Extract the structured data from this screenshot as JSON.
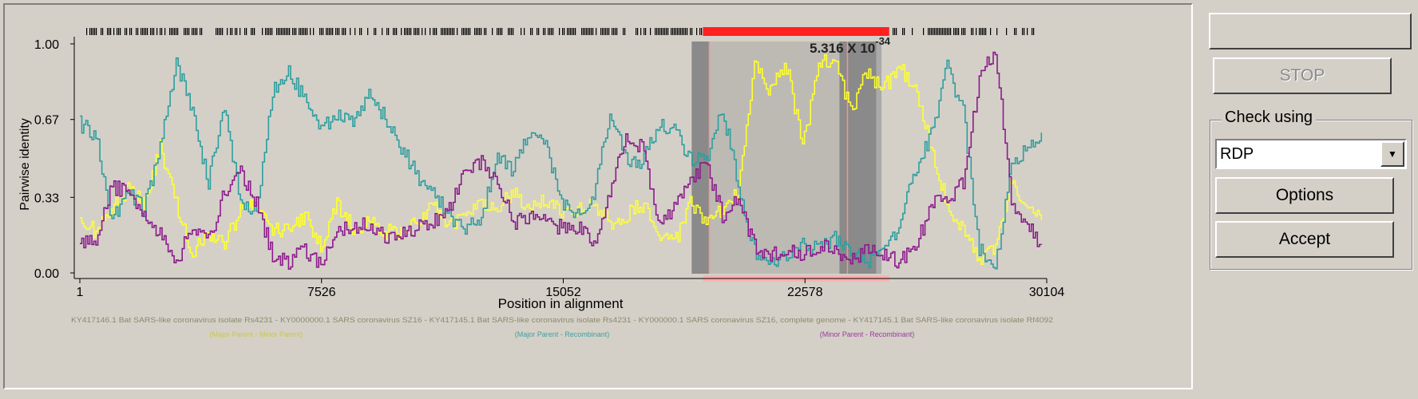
{
  "chart_data": {
    "type": "line",
    "title": "",
    "xlabel": "Position in alignment",
    "ylabel": "Pairwise identity",
    "xlim": [
      1,
      30104
    ],
    "ylim": [
      0.0,
      1.0
    ],
    "x_ticks": [
      "1",
      "7526",
      "15052",
      "22578",
      "30104"
    ],
    "y_ticks": [
      "1.00",
      "0.67",
      "0.33",
      "0.00"
    ],
    "pvalue_label": "5.316 X 10",
    "pvalue_exponent": "-34",
    "recombination_region": [
      20900,
      26400
    ],
    "x": [
      1,
      500,
      1000,
      1500,
      2000,
      2500,
      3000,
      3500,
      4000,
      4500,
      5000,
      5500,
      6000,
      6500,
      7000,
      7500,
      8000,
      8500,
      9000,
      9500,
      10000,
      10500,
      11000,
      11500,
      12000,
      12500,
      13000,
      13500,
      14000,
      14500,
      15000,
      15500,
      16000,
      16500,
      17000,
      17500,
      18000,
      18500,
      19000,
      19500,
      20000,
      20500,
      21000,
      21500,
      22000,
      22500,
      23000,
      23500,
      24000,
      24500,
      25000,
      25500,
      26000,
      26500,
      27000,
      27500,
      28000,
      28500,
      29000,
      29500,
      30000
    ],
    "series": [
      {
        "name": "",
        "color": "#ffff33",
        "values": [
          0.25,
          0.18,
          0.28,
          0.36,
          0.3,
          0.55,
          0.3,
          0.08,
          0.18,
          0.12,
          0.28,
          0.3,
          0.2,
          0.18,
          0.25,
          0.12,
          0.3,
          0.2,
          0.22,
          0.18,
          0.18,
          0.22,
          0.3,
          0.2,
          0.24,
          0.3,
          0.28,
          0.35,
          0.28,
          0.32,
          0.26,
          0.28,
          0.3,
          0.22,
          0.25,
          0.3,
          0.18,
          0.12,
          0.3,
          0.22,
          0.28,
          0.35,
          0.9,
          0.8,
          0.9,
          0.55,
          0.9,
          0.95,
          0.7,
          0.88,
          0.8,
          0.9,
          0.8,
          0.55,
          0.3,
          0.18,
          0.05,
          0.1,
          0.4,
          0.3,
          0.25
        ]
      },
      {
        "name": "",
        "color": "#2e9e9e",
        "values": [
          0.65,
          0.6,
          0.22,
          0.36,
          0.28,
          0.55,
          0.92,
          0.7,
          0.4,
          0.72,
          0.3,
          0.28,
          0.8,
          0.88,
          0.76,
          0.62,
          0.7,
          0.65,
          0.78,
          0.68,
          0.55,
          0.42,
          0.35,
          0.25,
          0.2,
          0.25,
          0.5,
          0.45,
          0.62,
          0.55,
          0.3,
          0.25,
          0.35,
          0.7,
          0.5,
          0.48,
          0.65,
          0.62,
          0.5,
          0.48,
          0.72,
          0.38,
          0.1,
          0.05,
          0.08,
          0.12,
          0.1,
          0.15,
          0.1,
          0.05,
          0.08,
          0.2,
          0.45,
          0.6,
          0.9,
          0.7,
          0.1,
          0.02,
          0.45,
          0.55,
          0.6
        ]
      },
      {
        "name": "",
        "color": "#8b1a8b",
        "values": [
          0.12,
          0.15,
          0.38,
          0.35,
          0.25,
          0.18,
          0.05,
          0.2,
          0.14,
          0.35,
          0.45,
          0.3,
          0.08,
          0.05,
          0.1,
          0.03,
          0.2,
          0.18,
          0.22,
          0.15,
          0.16,
          0.2,
          0.22,
          0.28,
          0.45,
          0.48,
          0.4,
          0.22,
          0.25,
          0.22,
          0.2,
          0.2,
          0.12,
          0.35,
          0.6,
          0.55,
          0.2,
          0.28,
          0.4,
          0.48,
          0.25,
          0.32,
          0.12,
          0.08,
          0.1,
          0.08,
          0.12,
          0.1,
          0.05,
          0.1,
          0.08,
          0.05,
          0.1,
          0.3,
          0.32,
          0.4,
          0.85,
          0.98,
          0.3,
          0.2,
          0.12
        ]
      }
    ]
  },
  "legend": {
    "line1": "KY417146.1 Bat SARS-like coronavirus isolate Rs4231 - KY0000000.1 SARS coronavirus SZ16 - KY417145.1 Bat SARS-like coronavirus isolate Rs4231 - KY000000.1 SARS coronavirus SZ16, complete genome - KY417145.1 Bat SARS-like coronavirus isolate Rf4092",
    "pair1_label": "(Major Parent - Minor Parent)",
    "pair2_label": "(Major Parent - Recombinant)",
    "pair3_label": "(Minor Parent - Recombinant)"
  },
  "buttons": {
    "top_label": "",
    "stop_label": "STOP",
    "options_label": "Options",
    "accept_label": "Accept"
  },
  "check_using": {
    "legend": "Check using",
    "selected": "RDP"
  },
  "colors": {
    "background": "#d4d0c8",
    "highlight_region": "#999999",
    "significance_bar": "#ff2020",
    "pink_band": "#ffb0b0"
  }
}
